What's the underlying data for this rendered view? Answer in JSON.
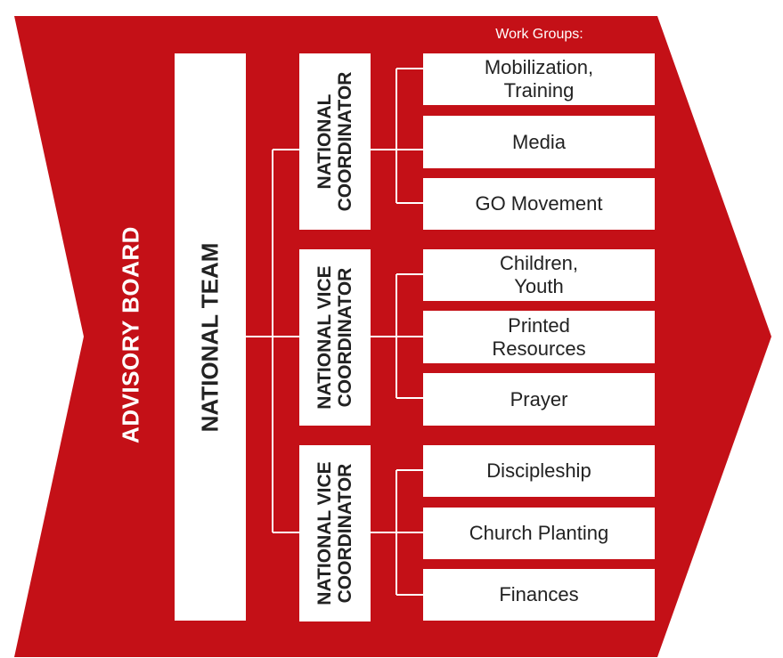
{
  "advisory_board": "ADVISORY BOARD",
  "national_team": "NATIONAL TEAM",
  "work_groups_title": "Work Groups:",
  "coordinators": [
    {
      "lines": [
        "NATIONAL",
        "COORDINATOR"
      ],
      "groups": [
        [
          "Mobilization,",
          "Training"
        ],
        [
          "Media"
        ],
        [
          "GO Movement"
        ]
      ]
    },
    {
      "lines": [
        "NATIONAL VICE",
        "COORDINATOR"
      ],
      "groups": [
        [
          "Children,",
          "Youth"
        ],
        [
          "Printed",
          "Resources"
        ],
        [
          "Prayer"
        ]
      ]
    },
    {
      "lines": [
        "NATIONAL VICE",
        "COORDINATOR"
      ],
      "groups": [
        [
          "Discipleship"
        ],
        [
          "Church Planting"
        ],
        [
          "Finances"
        ]
      ]
    }
  ],
  "colors": {
    "background_red": "#c41017",
    "box_white": "#ffffff",
    "text_dark": "#222222"
  }
}
